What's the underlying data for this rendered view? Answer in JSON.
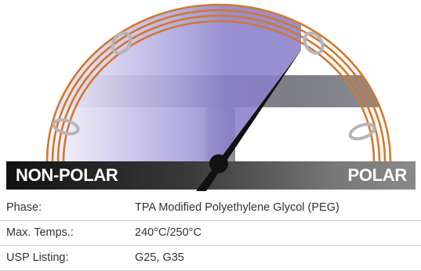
{
  "scale": {
    "left_label": "NON-POLAR",
    "right_label": "POLAR"
  },
  "colors": {
    "coil": "#d2782e",
    "ring": "#b5b5b8",
    "tint": "#8a7fc8",
    "needle": "#111111"
  },
  "specs": [
    {
      "label": "Phase:",
      "value": "TPA Modified Polyethylene Glycol (PEG)"
    },
    {
      "label": "Max. Temps.:",
      "value": "240°C/250°C"
    },
    {
      "label": "USP Listing:",
      "value": "G25, G35"
    }
  ]
}
